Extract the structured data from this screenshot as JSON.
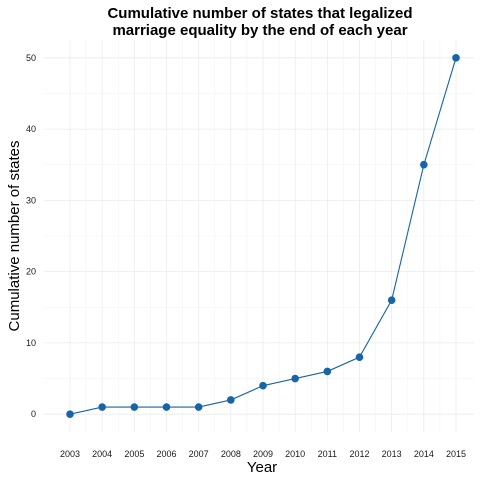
{
  "chart_data": {
    "type": "line",
    "title_lines": [
      "Cumulative number of states that legalized",
      "marriage equality by the end of each year"
    ],
    "xlabel": "Year",
    "ylabel": "Cumulative number of states",
    "x": [
      2003,
      2004,
      2005,
      2006,
      2007,
      2008,
      2009,
      2010,
      2011,
      2012,
      2013,
      2014,
      2015
    ],
    "series": [
      {
        "values": [
          0,
          1,
          1,
          1,
          1,
          2,
          4,
          5,
          6,
          8,
          16,
          35,
          50
        ]
      }
    ],
    "yticks": [
      0,
      10,
      20,
      30,
      40,
      50
    ],
    "ylim": [
      -2.5,
      52.5
    ],
    "grid": true,
    "line_color": "#1565a8",
    "point_color": "#1565a8"
  }
}
